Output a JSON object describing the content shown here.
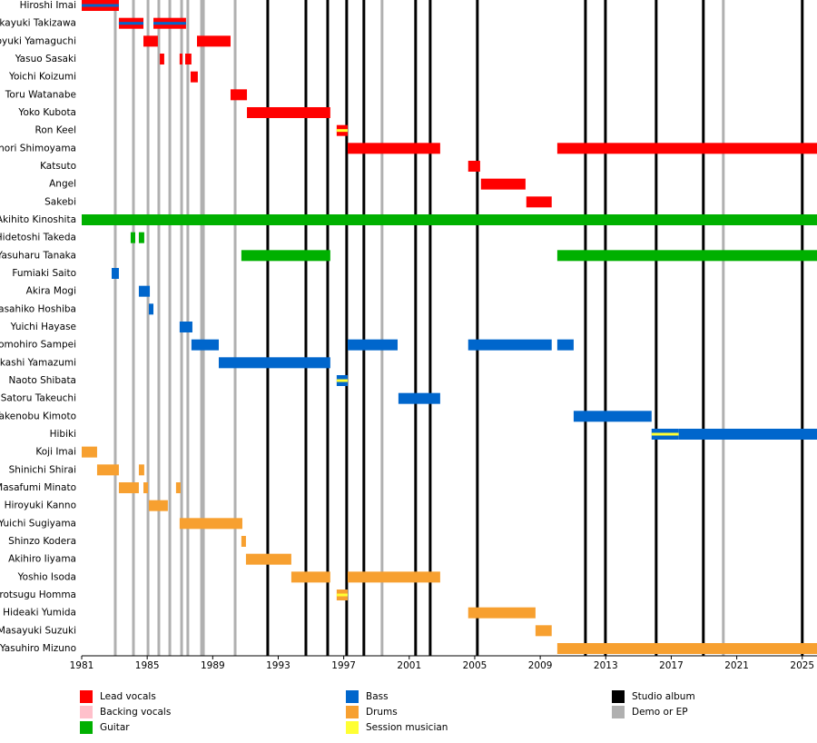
{
  "chart_data": {
    "type": "timeline",
    "xlim": [
      1981,
      2025.9
    ],
    "xticks": [
      1981,
      1985,
      1989,
      1993,
      1997,
      2001,
      2005,
      2009,
      2013,
      2017,
      2021,
      2025
    ],
    "roles": [
      {
        "name": "Lead vocals",
        "color": "#ff0000"
      },
      {
        "name": "Backing vocals",
        "color": "#ffc0cb"
      },
      {
        "name": "Guitar",
        "color": "#00b000"
      },
      {
        "name": "Bass",
        "color": "#0066cc"
      },
      {
        "name": "Drums",
        "color": "#f7a030"
      },
      {
        "name": "Session musician",
        "color": "#ffff33"
      }
    ],
    "events": [
      {
        "name": "Studio album",
        "color": "#000000",
        "x": [
          1992.36,
          1994.69,
          1996.02,
          1997.18,
          1998.23,
          2001.39,
          2002.28,
          2005.16,
          2011.76,
          2012.98,
          2016.08,
          2018.96,
          2025.0
        ]
      },
      {
        "name": "Demo or EP",
        "color": "#b0b0b0",
        "x": [
          1983.05,
          1984.16,
          1985.05,
          1985.71,
          1986.38,
          1987.1,
          1987.48,
          1988.32,
          1988.43,
          1990.37,
          1999.34,
          2020.18
        ]
      }
    ],
    "members": [
      {
        "name": "Hiroshi Imai",
        "periods": [
          {
            "start": 1981,
            "end": 1983.27,
            "color": "#ff0000",
            "stripe": "#0066cc"
          }
        ]
      },
      {
        "name": "Takayuki Takizawa",
        "periods": [
          {
            "start": 1983.27,
            "end": 1984.77,
            "color": "#ff0000",
            "stripe": "#0066cc"
          },
          {
            "start": 1985.38,
            "end": 1987.37,
            "color": "#ff0000",
            "stripe": "#0066cc"
          }
        ]
      },
      {
        "name": "Hiroyuki Yamaguchi",
        "periods": [
          {
            "start": 1984.77,
            "end": 1985.65,
            "color": "#ff0000"
          },
          {
            "start": 1988.04,
            "end": 1990.09,
            "color": "#ff0000"
          }
        ]
      },
      {
        "name": "Yasuo Sasaki",
        "periods": [
          {
            "start": 1985.77,
            "end": 1986.04,
            "color": "#ff0000"
          },
          {
            "start": 1986.98,
            "end": 1987.15,
            "color": "#ff0000"
          },
          {
            "start": 1987.32,
            "end": 1987.7,
            "color": "#ff0000"
          }
        ]
      },
      {
        "name": "Yoichi Koizumi",
        "periods": [
          {
            "start": 1987.65,
            "end": 1988.09,
            "color": "#ff0000"
          }
        ]
      },
      {
        "name": "Toru Watanabe",
        "periods": [
          {
            "start": 1990.09,
            "end": 1991.09,
            "color": "#ff0000"
          }
        ]
      },
      {
        "name": "Yoko Kubota",
        "periods": [
          {
            "start": 1991.09,
            "end": 1996.18,
            "color": "#ff0000"
          }
        ]
      },
      {
        "name": "Ron Keel",
        "periods": [
          {
            "start": 1996.57,
            "end": 1997.24,
            "color": "#ff0000",
            "stripe": "#ffff33"
          }
        ]
      },
      {
        "name": "Takenori Shimoyama",
        "periods": [
          {
            "start": 1997.24,
            "end": 2002.89,
            "color": "#ff0000"
          },
          {
            "start": 2010.04,
            "end": 2025.9,
            "color": "#ff0000"
          }
        ]
      },
      {
        "name": "Katsuto",
        "periods": [
          {
            "start": 2004.6,
            "end": 2005.33,
            "color": "#ff0000"
          }
        ]
      },
      {
        "name": "Angel",
        "periods": [
          {
            "start": 2005.38,
            "end": 2008.1,
            "color": "#ff0000"
          }
        ]
      },
      {
        "name": "Sakebi",
        "periods": [
          {
            "start": 2008.15,
            "end": 2009.7,
            "color": "#ff0000"
          }
        ]
      },
      {
        "name": "Akihito Kinoshita",
        "periods": [
          {
            "start": 1981,
            "end": 2025.9,
            "color": "#00b000"
          }
        ]
      },
      {
        "name": "Hidetoshi Takeda",
        "periods": [
          {
            "start": 1983.99,
            "end": 1984.27,
            "color": "#00b000"
          },
          {
            "start": 1984.49,
            "end": 1984.82,
            "color": "#00b000"
          }
        ]
      },
      {
        "name": "Yasuharu Tanaka",
        "periods": [
          {
            "start": 1990.75,
            "end": 1996.18,
            "color": "#00b000"
          },
          {
            "start": 2010.04,
            "end": 2025.9,
            "color": "#00b000"
          }
        ]
      },
      {
        "name": "Fumiaki Saito",
        "periods": [
          {
            "start": 1982.83,
            "end": 1983.27,
            "color": "#0066cc"
          }
        ]
      },
      {
        "name": "Akira Mogi",
        "periods": [
          {
            "start": 1984.49,
            "end": 1985.16,
            "color": "#0066cc"
          }
        ]
      },
      {
        "name": "Masahiko Hoshiba",
        "periods": [
          {
            "start": 1985.1,
            "end": 1985.38,
            "color": "#0066cc"
          }
        ]
      },
      {
        "name": "Yuichi Hayase",
        "periods": [
          {
            "start": 1986.98,
            "end": 1987.76,
            "color": "#0066cc"
          }
        ]
      },
      {
        "name": "Tomohiro Sampei",
        "periods": [
          {
            "start": 1987.7,
            "end": 1989.37,
            "color": "#0066cc"
          },
          {
            "start": 1997.24,
            "end": 2000.29,
            "color": "#0066cc"
          },
          {
            "start": 2004.6,
            "end": 2009.7,
            "color": "#0066cc"
          },
          {
            "start": 2010.04,
            "end": 2011.04,
            "color": "#0066cc"
          }
        ]
      },
      {
        "name": "Takashi Yamazumi",
        "periods": [
          {
            "start": 1989.37,
            "end": 1996.18,
            "color": "#0066cc"
          }
        ]
      },
      {
        "name": "Naoto Shibata",
        "periods": [
          {
            "start": 1996.57,
            "end": 1997.24,
            "color": "#0066cc",
            "stripe": "#ffff33"
          }
        ]
      },
      {
        "name": "Satoru Takeuchi",
        "periods": [
          {
            "start": 2000.34,
            "end": 2002.89,
            "color": "#0066cc"
          }
        ]
      },
      {
        "name": "Takenobu Kimoto",
        "periods": [
          {
            "start": 2011.04,
            "end": 2015.8,
            "color": "#0066cc"
          }
        ]
      },
      {
        "name": "Hibiki",
        "periods": [
          {
            "start": 2015.8,
            "end": 2017.46,
            "color": "#0066cc",
            "stripe": "#ffff33"
          },
          {
            "start": 2017.46,
            "end": 2025.9,
            "color": "#0066cc"
          }
        ]
      },
      {
        "name": "Koji Imai",
        "periods": [
          {
            "start": 1981,
            "end": 1981.94,
            "color": "#f7a030"
          }
        ]
      },
      {
        "name": "Shinichi Shirai",
        "periods": [
          {
            "start": 1981.94,
            "end": 1983.27,
            "color": "#f7a030"
          },
          {
            "start": 1984.49,
            "end": 1984.82,
            "color": "#f7a030"
          }
        ]
      },
      {
        "name": "Masafumi Minato",
        "periods": [
          {
            "start": 1983.27,
            "end": 1984.49,
            "color": "#f7a030"
          },
          {
            "start": 1984.77,
            "end": 1985.05,
            "color": "#f7a030"
          },
          {
            "start": 1986.76,
            "end": 1987.04,
            "color": "#f7a030"
          }
        ]
      },
      {
        "name": "Hiroyuki Kanno",
        "periods": [
          {
            "start": 1985.1,
            "end": 1986.26,
            "color": "#f7a030"
          }
        ]
      },
      {
        "name": "Yuichi Sugiyama",
        "periods": [
          {
            "start": 1986.98,
            "end": 1990.81,
            "color": "#f7a030"
          }
        ]
      },
      {
        "name": "Shinzo Kodera",
        "periods": [
          {
            "start": 1990.75,
            "end": 1991.03,
            "color": "#f7a030"
          }
        ]
      },
      {
        "name": "Akihiro Iiyama",
        "periods": [
          {
            "start": 1991.03,
            "end": 1993.8,
            "color": "#f7a030"
          }
        ]
      },
      {
        "name": "Yoshio Isoda",
        "periods": [
          {
            "start": 1993.8,
            "end": 1996.18,
            "color": "#f7a030"
          },
          {
            "start": 1997.24,
            "end": 2002.89,
            "color": "#f7a030"
          }
        ]
      },
      {
        "name": "Hirotsugu Homma",
        "periods": [
          {
            "start": 1996.57,
            "end": 1997.24,
            "color": "#f7a030",
            "stripe": "#ffff33"
          }
        ]
      },
      {
        "name": "Hideaki Yumida",
        "periods": [
          {
            "start": 2004.6,
            "end": 2008.71,
            "color": "#f7a030"
          }
        ]
      },
      {
        "name": "Masayuki Suzuki",
        "periods": [
          {
            "start": 2008.71,
            "end": 2009.7,
            "color": "#f7a030"
          }
        ]
      },
      {
        "name": "Yasuhiro Mizuno",
        "periods": [
          {
            "start": 2010.04,
            "end": 2025.9,
            "color": "#f7a030"
          }
        ]
      }
    ]
  }
}
